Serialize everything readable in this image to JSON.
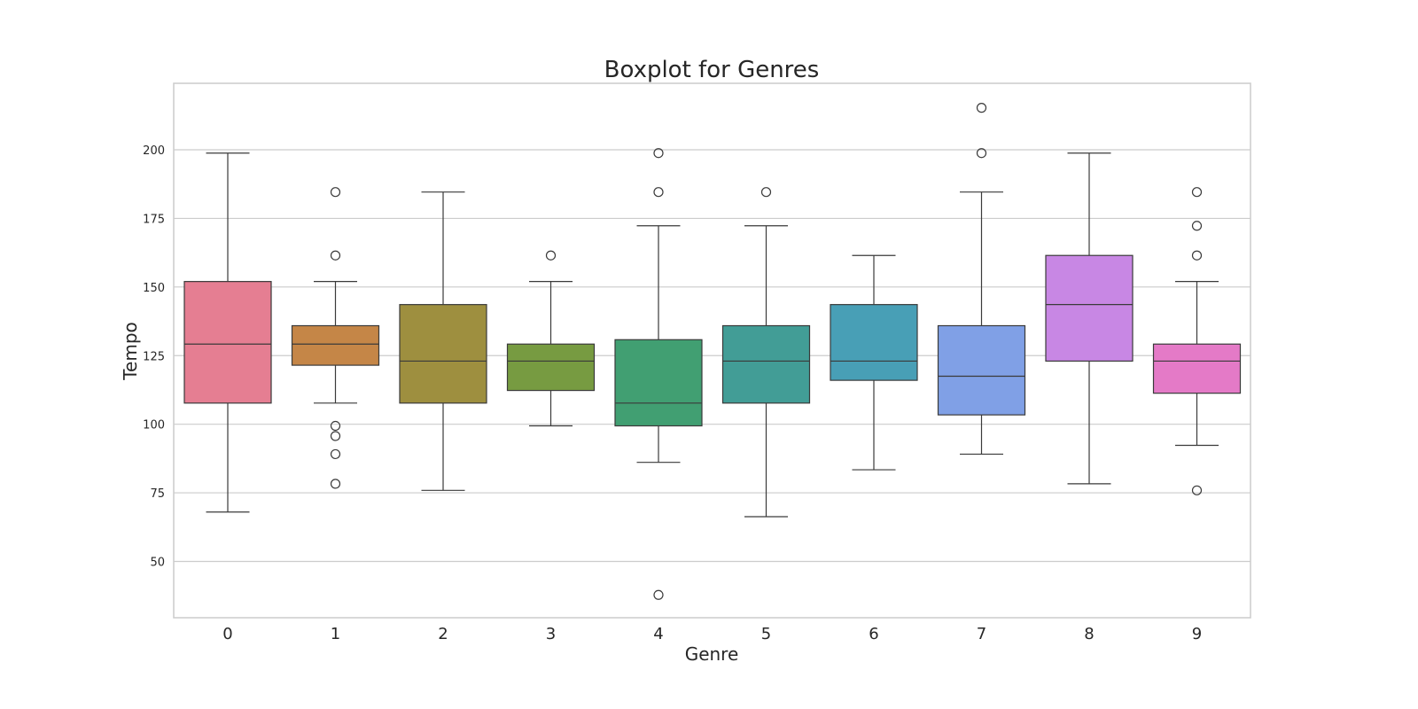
{
  "chart_data": {
    "type": "boxplot",
    "title": "Boxplot for Genres",
    "xlabel": "Genre",
    "ylabel": "Tempo",
    "ylim": [
      30,
      225
    ],
    "yticks": [
      50,
      75,
      100,
      125,
      150,
      175,
      200
    ],
    "grid": true,
    "categories": [
      "0",
      "1",
      "2",
      "3",
      "4",
      "5",
      "6",
      "7",
      "8",
      "9"
    ],
    "boxes": [
      {
        "category": "0",
        "color": "#e57e92",
        "whisker_low": 68,
        "q1": 107.7,
        "median": 129.2,
        "q3": 152.0,
        "whisker_high": 198.8,
        "outliers": []
      },
      {
        "category": "1",
        "color": "#c58647",
        "whisker_low": 107.7,
        "q1": 121.5,
        "median": 129.2,
        "q3": 135.9,
        "whisker_high": 152.0,
        "outliers": [
          184.6,
          161.5,
          99.4,
          95.7,
          89.1,
          78.3
        ]
      },
      {
        "category": "2",
        "color": "#9e8f3f",
        "whisker_low": 75.9,
        "q1": 107.7,
        "median": 123.0,
        "q3": 143.6,
        "whisker_high": 184.6,
        "outliers": []
      },
      {
        "category": "3",
        "color": "#779b41",
        "whisker_low": 99.4,
        "q1": 112.3,
        "median": 123.0,
        "q3": 129.2,
        "whisker_high": 152.0,
        "outliers": [
          161.5
        ]
      },
      {
        "category": "4",
        "color": "#419f72",
        "whisker_low": 86.1,
        "q1": 99.4,
        "median": 107.7,
        "q3": 130.8,
        "whisker_high": 172.3,
        "outliers": [
          198.8,
          184.6,
          37.8
        ]
      },
      {
        "category": "5",
        "color": "#429d96",
        "whisker_low": 66.3,
        "q1": 107.7,
        "median": 123.0,
        "q3": 135.9,
        "whisker_high": 172.3,
        "outliers": [
          184.6
        ]
      },
      {
        "category": "6",
        "color": "#489fb6",
        "whisker_low": 83.4,
        "q1": 116.0,
        "median": 123.0,
        "q3": 143.6,
        "whisker_high": 161.5,
        "outliers": []
      },
      {
        "category": "7",
        "color": "#80a0e6",
        "whisker_low": 89.1,
        "q1": 103.4,
        "median": 117.5,
        "q3": 135.9,
        "whisker_high": 184.6,
        "outliers": [
          215.3,
          198.8
        ]
      },
      {
        "category": "8",
        "color": "#c887e4",
        "whisker_low": 78.3,
        "q1": 123.0,
        "median": 143.6,
        "q3": 161.5,
        "whisker_high": 198.8,
        "outliers": []
      },
      {
        "category": "9",
        "color": "#e47ac7",
        "whisker_low": 92.3,
        "q1": 111.3,
        "median": 123.0,
        "q3": 129.2,
        "whisker_high": 152.0,
        "outliers": [
          184.6,
          172.3,
          161.5,
          75.9
        ]
      }
    ],
    "colors": {
      "grid": "#cccccc",
      "frame": "#cccccc",
      "box_edge": "#3a3a3a"
    }
  }
}
